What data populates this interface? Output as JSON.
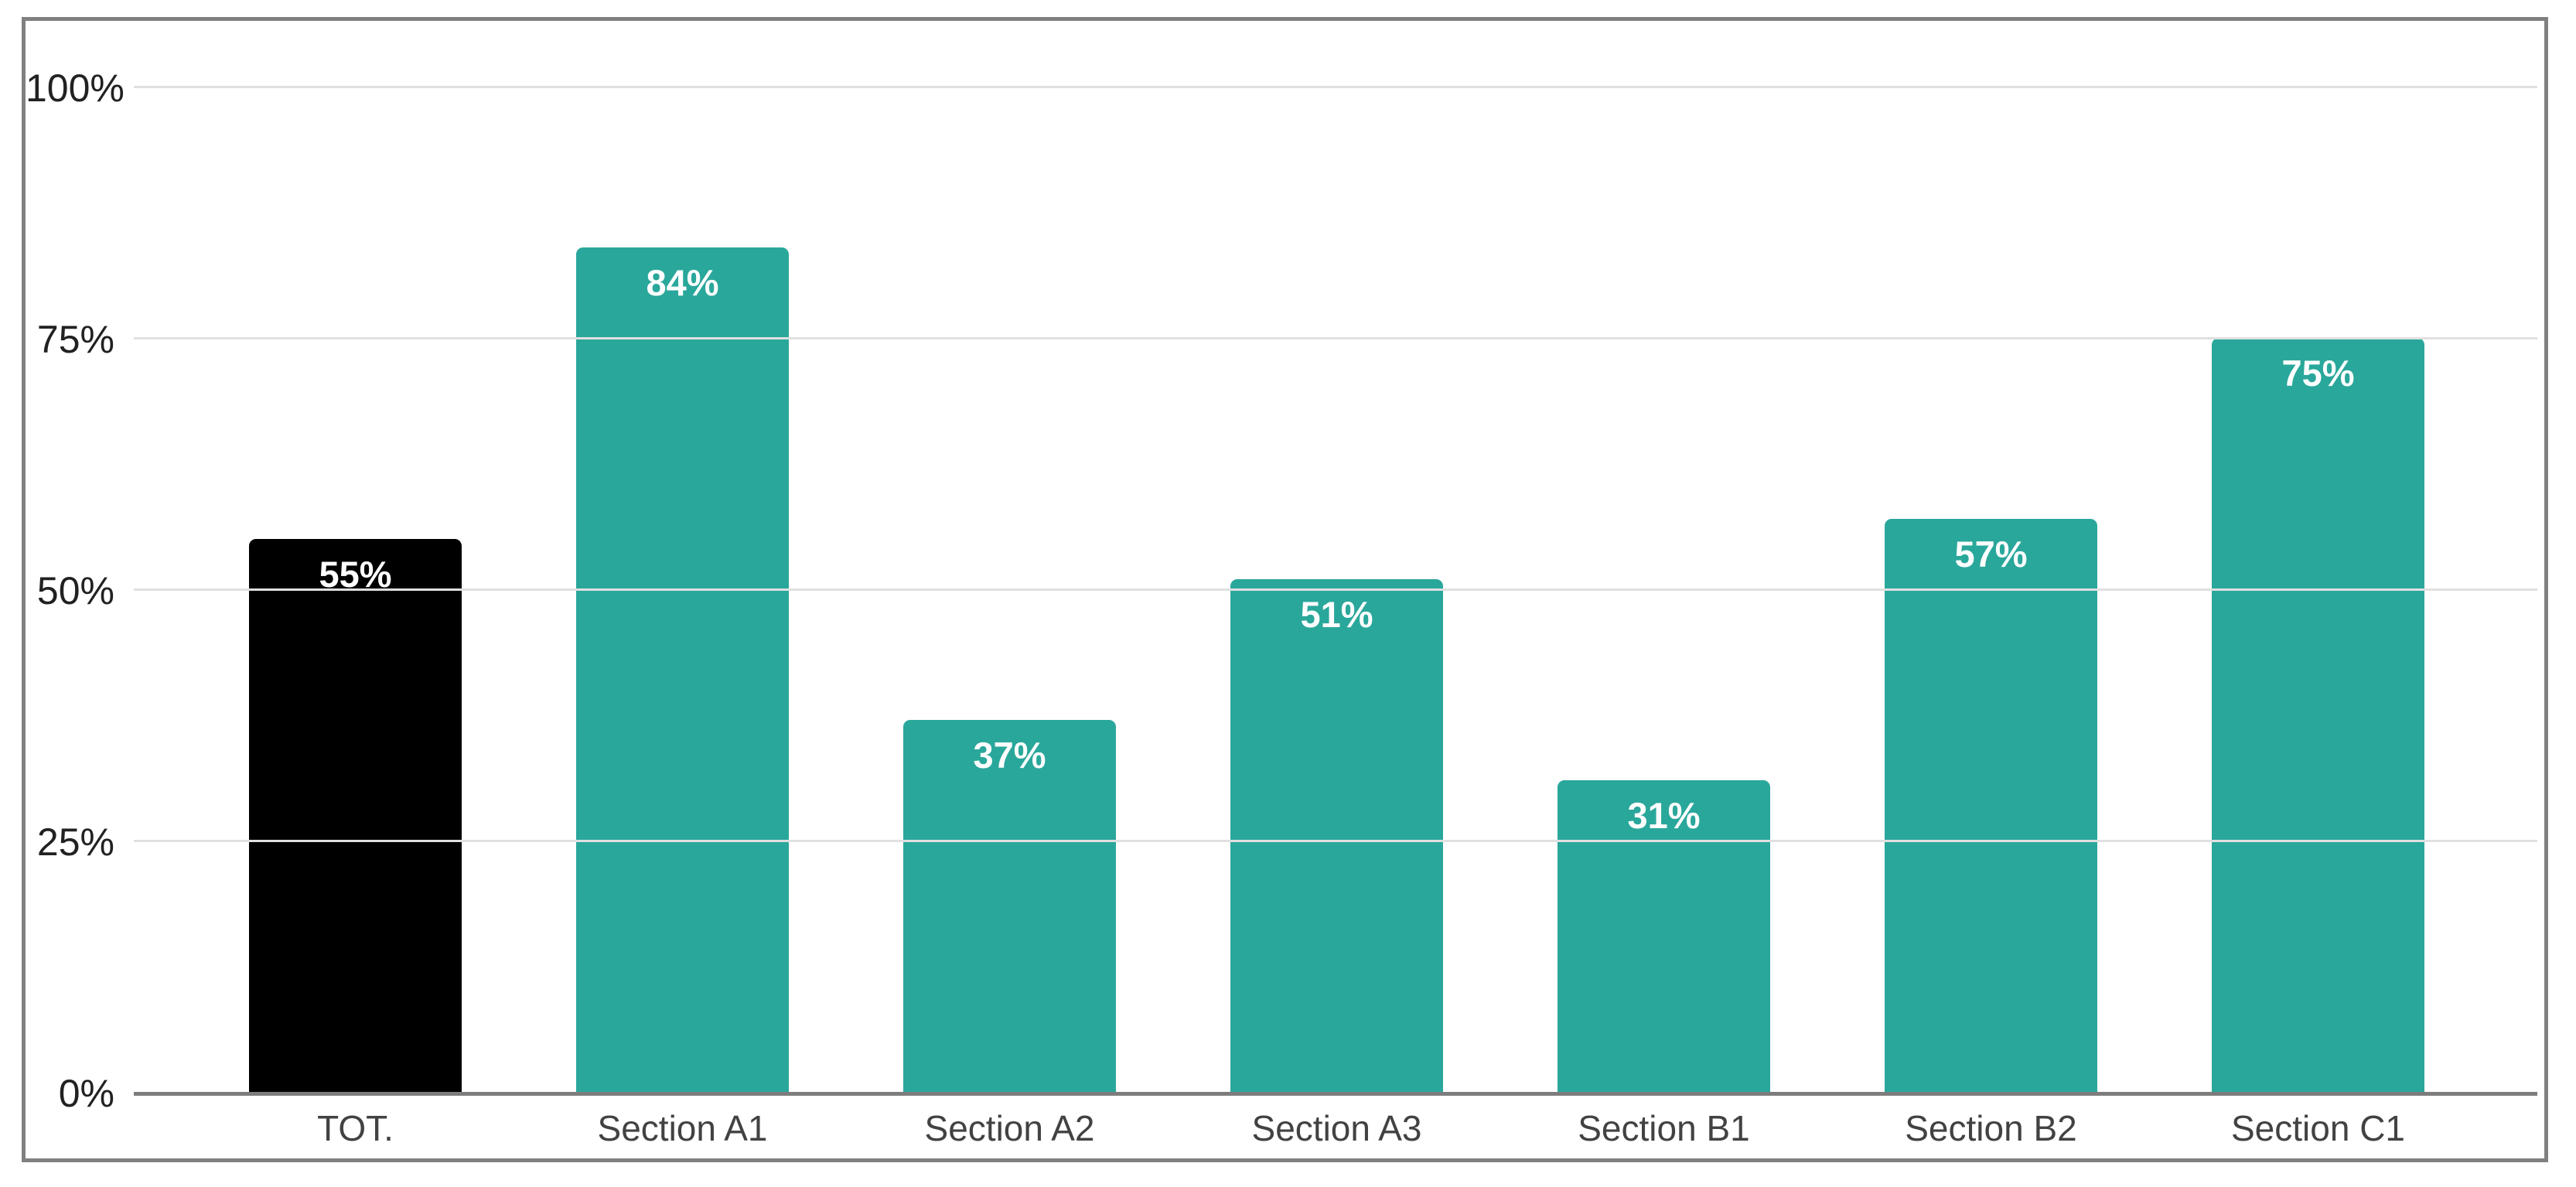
{
  "chart_data": {
    "type": "bar",
    "title": "",
    "xlabel": "",
    "ylabel": "",
    "categories": [
      "TOT.",
      "Section A1",
      "Section A2",
      "Section A3",
      "Section B1",
      "Section B2",
      "Section C1"
    ],
    "values": [
      55,
      84,
      37,
      51,
      31,
      57,
      75
    ],
    "value_labels": [
      "55%",
      "84%",
      "37%",
      "51%",
      "31%",
      "57%",
      "75%"
    ],
    "bar_colors": [
      "#000000",
      "#2aa79b",
      "#2aa79b",
      "#2aa79b",
      "#2aa79b",
      "#2aa79b",
      "#2aa79b"
    ],
    "ylim": [
      0,
      100
    ],
    "yticks": [
      0,
      25,
      50,
      75,
      100
    ],
    "ytick_labels": [
      "0%",
      "25%",
      "50%",
      "75%",
      "100%"
    ],
    "grid": true,
    "legend": false,
    "legend_position": "none"
  },
  "colors": {
    "bar_teal": "#2aa79b",
    "bar_total": "#000000",
    "value_label_text": "#ffffff",
    "gridline": "#e0e0e0",
    "axis_line": "#7d7d7d",
    "frame_border": "#808080",
    "y_tick_text": "#212121",
    "x_tick_text": "#424242",
    "background": "#ffffff"
  }
}
